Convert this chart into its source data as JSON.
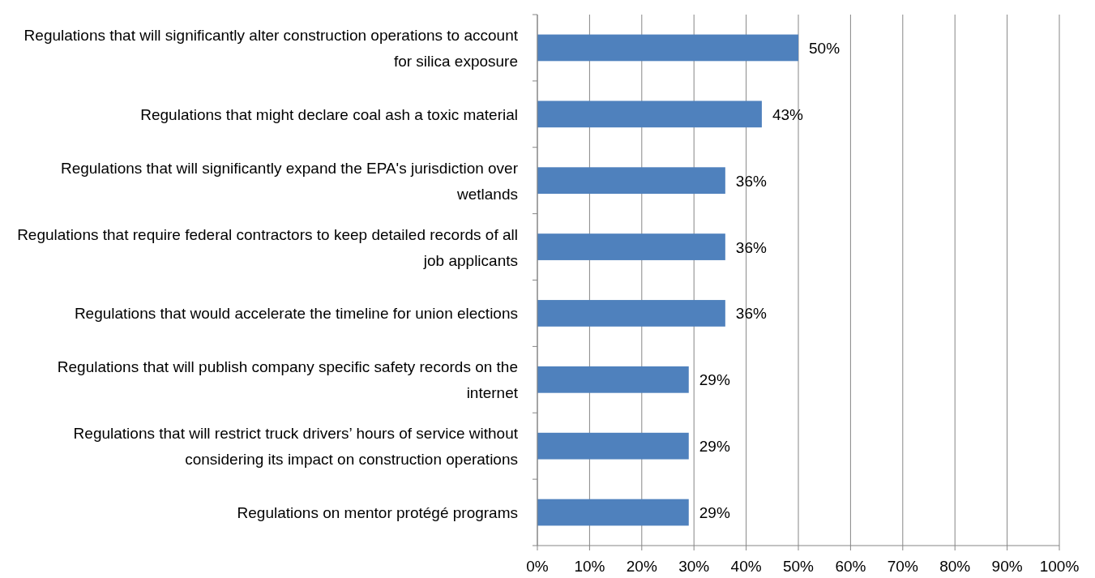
{
  "chart_data": {
    "type": "bar",
    "orientation": "horizontal",
    "categories": [
      "Regulations that will significantly alter construction operations to account for silica exposure",
      "Regulations that might declare coal ash a toxic material",
      "Regulations that will significantly expand the EPA's jurisdiction over wetlands",
      "Regulations that require federal contractors to keep detailed records of all job applicants",
      "Regulations that would accelerate the timeline for union elections",
      "Regulations that will publish company specific safety records on the internet",
      "Regulations that will restrict truck drivers’ hours of service without considering its impact on construction operations",
      "Regulations on mentor protégé programs"
    ],
    "values": [
      50,
      43,
      36,
      36,
      36,
      29,
      29,
      29
    ],
    "value_labels": [
      "50%",
      "43%",
      "36%",
      "36%",
      "36%",
      "29%",
      "29%",
      "29%"
    ],
    "color": "#4f81bd",
    "xlim": [
      0,
      100
    ],
    "xticks": [
      {
        "value": 0,
        "label": "0%"
      },
      {
        "value": 10,
        "label": "10%"
      },
      {
        "value": 20,
        "label": "20%"
      },
      {
        "value": 30,
        "label": "30%"
      },
      {
        "value": 40,
        "label": "40%"
      },
      {
        "value": 50,
        "label": "50%"
      },
      {
        "value": 60,
        "label": "60%"
      },
      {
        "value": 70,
        "label": "70%"
      },
      {
        "value": 80,
        "label": "80%"
      },
      {
        "value": 90,
        "label": "90%"
      },
      {
        "value": 100,
        "label": "100%"
      }
    ],
    "grid": "x"
  }
}
